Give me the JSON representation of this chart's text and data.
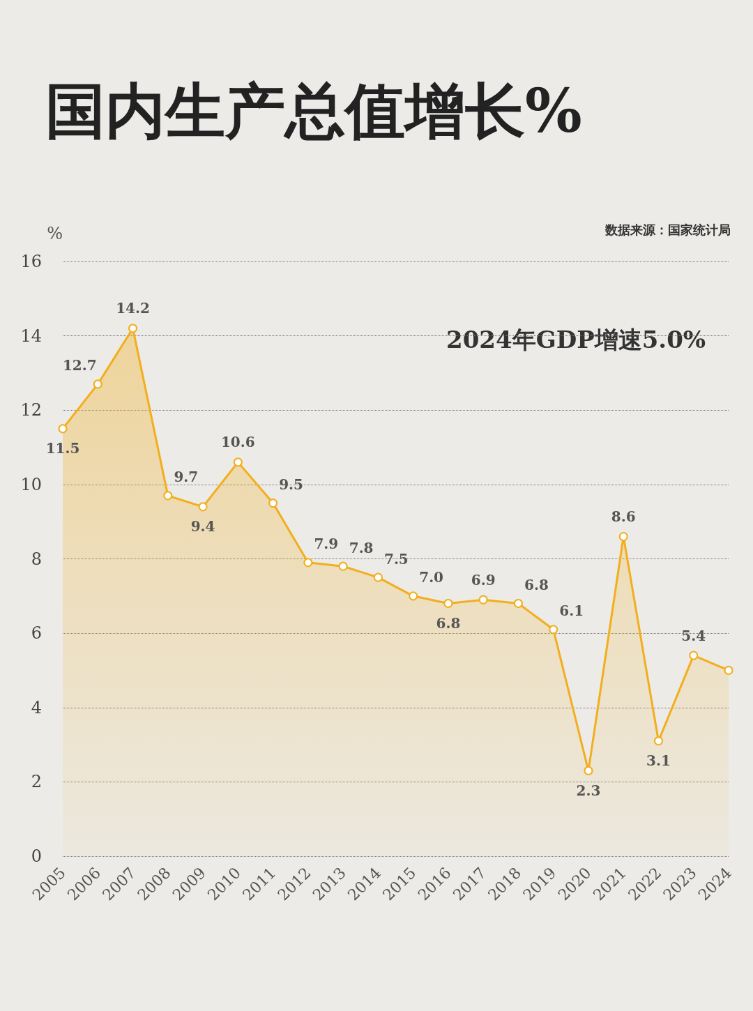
{
  "chart_data": {
    "type": "area",
    "title": "国内生产总值增长%",
    "ylabel": "%",
    "categories": [
      "2005",
      "2006",
      "2007",
      "2008",
      "2009",
      "2010",
      "2011",
      "2012",
      "2013",
      "2014",
      "2015",
      "2016",
      "2017",
      "2018",
      "2019",
      "2020",
      "2021",
      "2022",
      "2023",
      "2024"
    ],
    "series": [
      {
        "color": "#f2ae1c",
        "values": [
          11.5,
          12.7,
          14.2,
          9.7,
          9.4,
          10.6,
          9.5,
          7.9,
          7.8,
          7.5,
          7.0,
          6.8,
          6.9,
          6.8,
          6.1,
          2.3,
          8.6,
          3.1,
          5.4,
          5.0
        ],
        "value_labels": [
          "11.5",
          "12.7",
          "14.2",
          "9.7",
          "9.4",
          "10.6",
          "9.5",
          "7.9",
          "7.8",
          "7.5",
          "7.0",
          "6.8",
          "6.9",
          "6.8",
          "6.1",
          "2.3",
          "8.6",
          "3.1",
          "5.4",
          null
        ]
      }
    ],
    "ylim": [
      0,
      16
    ],
    "yticks": [
      0,
      2,
      4,
      6,
      8,
      10,
      12,
      14,
      16
    ],
    "grid": "y",
    "marker": "circle",
    "line_style": "solid",
    "annotations": [
      "2024年GDP增速5.0%",
      "数据来源：国家统计局"
    ]
  }
}
